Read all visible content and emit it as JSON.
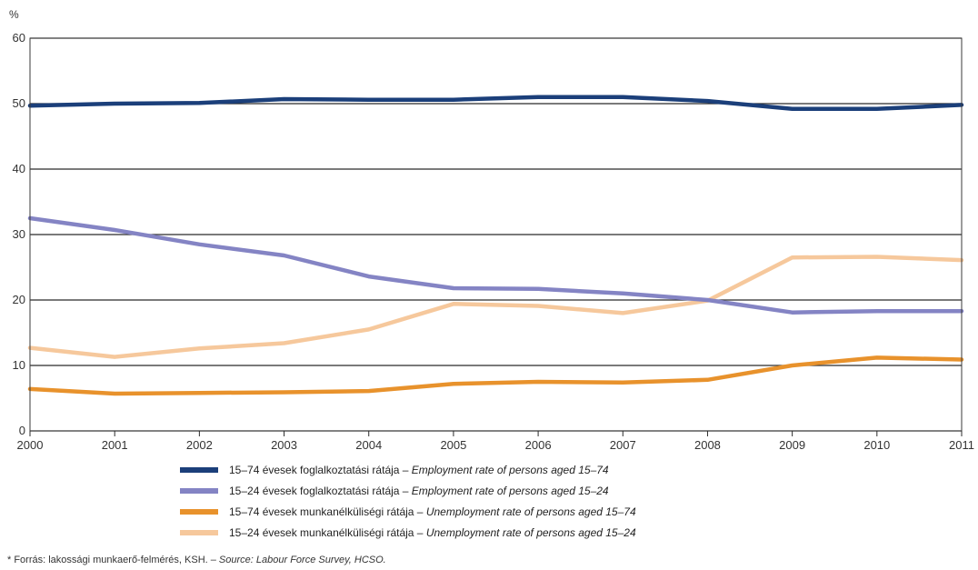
{
  "chart_data": {
    "type": "line",
    "ylabel": "%",
    "ylim": [
      0,
      60
    ],
    "yticks": [
      0,
      10,
      20,
      30,
      40,
      50,
      60
    ],
    "x": [
      "2000",
      "2001",
      "2002",
      "2003",
      "2004",
      "2005",
      "2006",
      "2007",
      "2008",
      "2009",
      "2010",
      "2011"
    ],
    "grid": true,
    "legend_position": "bottom",
    "series": [
      {
        "name": "15–74 évesek foglalkoztatási rátája – Employment rate of persons aged 15–74",
        "name_hu": "15–74 évesek foglalkoztatási rátája – ",
        "name_en": "Employment rate of persons aged 15–74",
        "color": "#1b3f7a",
        "values": [
          49.7,
          50.0,
          50.1,
          50.7,
          50.6,
          50.6,
          51.0,
          51.0,
          50.4,
          49.2,
          49.2,
          49.8
        ]
      },
      {
        "name": "15–24 évesek foglalkoztatási rátája – Employment rate of persons aged 15–24",
        "name_hu": "15–24 évesek foglalkoztatási rátája – ",
        "name_en": "Employment rate of persons aged 15–24",
        "color": "#8484c4",
        "values": [
          32.5,
          30.7,
          28.5,
          26.8,
          23.6,
          21.8,
          21.7,
          21.0,
          20.0,
          18.1,
          18.3,
          18.3
        ]
      },
      {
        "name": "15–74 évesek munkanélküliségi rátája – Unemployment rate of persons aged 15–74",
        "name_hu": "15–74 évesek munkanélküliségi rátája – ",
        "name_en": "Unemployment rate of persons aged 15–74",
        "color": "#e8922c",
        "values": [
          6.4,
          5.7,
          5.8,
          5.9,
          6.1,
          7.2,
          7.5,
          7.4,
          7.8,
          10.0,
          11.2,
          10.9
        ]
      },
      {
        "name": "15–24 évesek munkanélküliségi rátája – Unemployment rate of persons aged 15–24",
        "name_hu": "15–24 évesek munkanélküliségi rátája – ",
        "name_en": "Unemployment rate of persons aged 15–24",
        "color": "#f6c89c",
        "values": [
          12.7,
          11.3,
          12.6,
          13.4,
          15.5,
          19.4,
          19.1,
          18.0,
          19.9,
          26.5,
          26.6,
          26.1
        ]
      }
    ]
  },
  "source": {
    "prefix": "* Forrás: lakossági munkaerő-felmérés, KSH. – ",
    "en": "Source: Labour Force Survey, HCSO."
  }
}
